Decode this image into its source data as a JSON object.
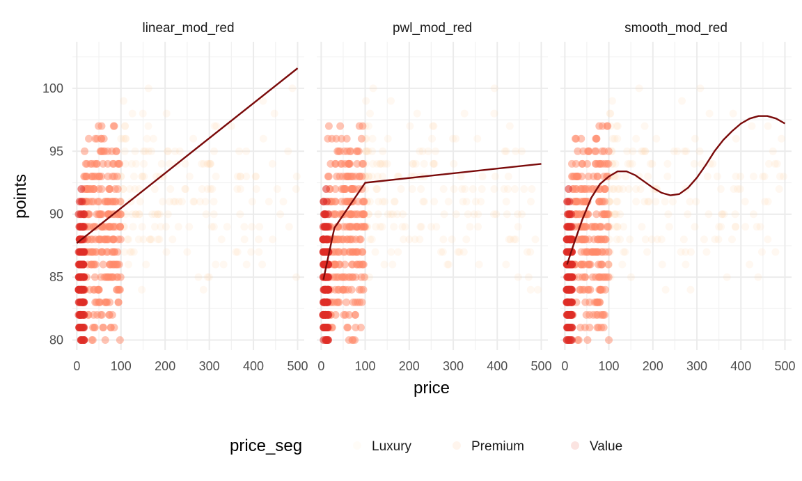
{
  "chart_data": {
    "type": "scatter",
    "facets": [
      {
        "title": "linear_mod_red",
        "fit": {
          "x": [
            0,
            500
          ],
          "y": [
            87.7,
            101.6
          ]
        }
      },
      {
        "title": "pwl_mod_red",
        "fit": {
          "x": [
            5,
            30,
            100,
            500
          ],
          "y": [
            84.8,
            88.9,
            92.5,
            94.0
          ]
        }
      },
      {
        "title": "smooth_mod_red",
        "fit": {
          "x": [
            5,
            20,
            40,
            60,
            80,
            100,
            120,
            140,
            160,
            180,
            200,
            220,
            240,
            260,
            280,
            300,
            320,
            340,
            360,
            380,
            400,
            420,
            440,
            460,
            480,
            500
          ],
          "y": [
            86.0,
            87.6,
            89.6,
            91.3,
            92.4,
            93.0,
            93.4,
            93.4,
            93.1,
            92.6,
            92.1,
            91.7,
            91.5,
            91.6,
            92.1,
            92.9,
            93.9,
            95.0,
            95.9,
            96.6,
            97.2,
            97.6,
            97.8,
            97.8,
            97.6,
            97.2
          ]
        }
      }
    ],
    "xlabel": "price",
    "ylabel": "points",
    "xlim": [
      -10,
      515
    ],
    "ylim": [
      79.2,
      103.7
    ],
    "x_ticks": [
      0,
      100,
      200,
      300,
      400,
      500
    ],
    "y_ticks": [
      80,
      85,
      90,
      95,
      100
    ],
    "grid": true,
    "legend": {
      "title": "price_seg",
      "position": "bottom",
      "entries": [
        {
          "label": "Luxury",
          "color": "#fee8c8"
        },
        {
          "label": "Premium",
          "color": "#fdbb84"
        },
        {
          "label": "Value",
          "color": "#e34a33"
        }
      ]
    },
    "colors": {
      "Luxury": "#fdd9b0",
      "Premium": "#ff8a6a",
      "Value": "#de2d26",
      "fit_line": "#7a0a0a"
    }
  }
}
